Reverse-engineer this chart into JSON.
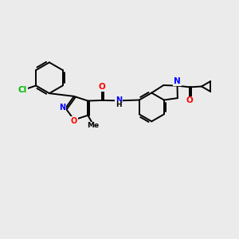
{
  "background_color": "#ebebeb",
  "bond_color": "#000000",
  "atom_colors": {
    "Cl": "#00bb00",
    "N": "#0000ff",
    "O": "#ff0000",
    "H": "#000000",
    "C": "#000000"
  },
  "lw": 1.4,
  "figsize": [
    3.0,
    3.0
  ],
  "dpi": 100
}
